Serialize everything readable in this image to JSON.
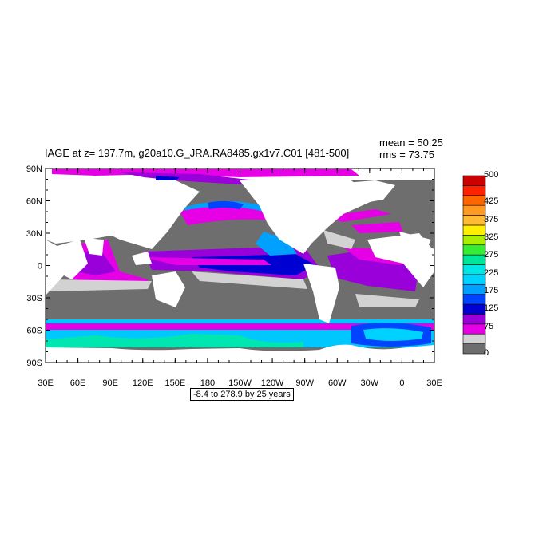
{
  "title": "IAGE at z= 197.7m, g20a10.G_JRA.RA8485.gx1v7.C01 [481-500]",
  "stats": {
    "mean": "mean = 50.25",
    "rms": "rms = 73.75"
  },
  "range_note": "-8.4 to 278.9 by 25 years",
  "axes": {
    "lat_labels": [
      "90N",
      "60N",
      "30N",
      "0",
      "30S",
      "60S",
      "90S"
    ],
    "lon_labels": [
      "30E",
      "60E",
      "90E",
      "120E",
      "150E",
      "180",
      "150W",
      "120W",
      "90W",
      "60W",
      "30W",
      "0",
      "30E"
    ]
  },
  "colorbar": {
    "colors": [
      "#6e6e6e",
      "#d2d2d2",
      "#e600e6",
      "#9a00d9",
      "#0000d2",
      "#0044ff",
      "#00a0ff",
      "#00d2ff",
      "#00e6e6",
      "#00e699",
      "#33ee33",
      "#aaee00",
      "#ffee00",
      "#ffbb33",
      "#ff9922",
      "#ff6600",
      "#ff2200",
      "#cc0000"
    ],
    "labels": [
      {
        "text": "0",
        "level": 0
      },
      {
        "text": "75",
        "level": 3
      },
      {
        "text": "125",
        "level": 5
      },
      {
        "text": "175",
        "level": 7
      },
      {
        "text": "225",
        "level": 9
      },
      {
        "text": "275",
        "level": 11
      },
      {
        "text": "325",
        "level": 13
      },
      {
        "text": "375",
        "level": 15
      },
      {
        "text": "425",
        "level": 17
      },
      {
        "text": "500",
        "level": 20
      }
    ]
  },
  "colors": {
    "land": "#ffffff",
    "old_water": "#6e6e6e",
    "young_water": "#e600e6"
  }
}
